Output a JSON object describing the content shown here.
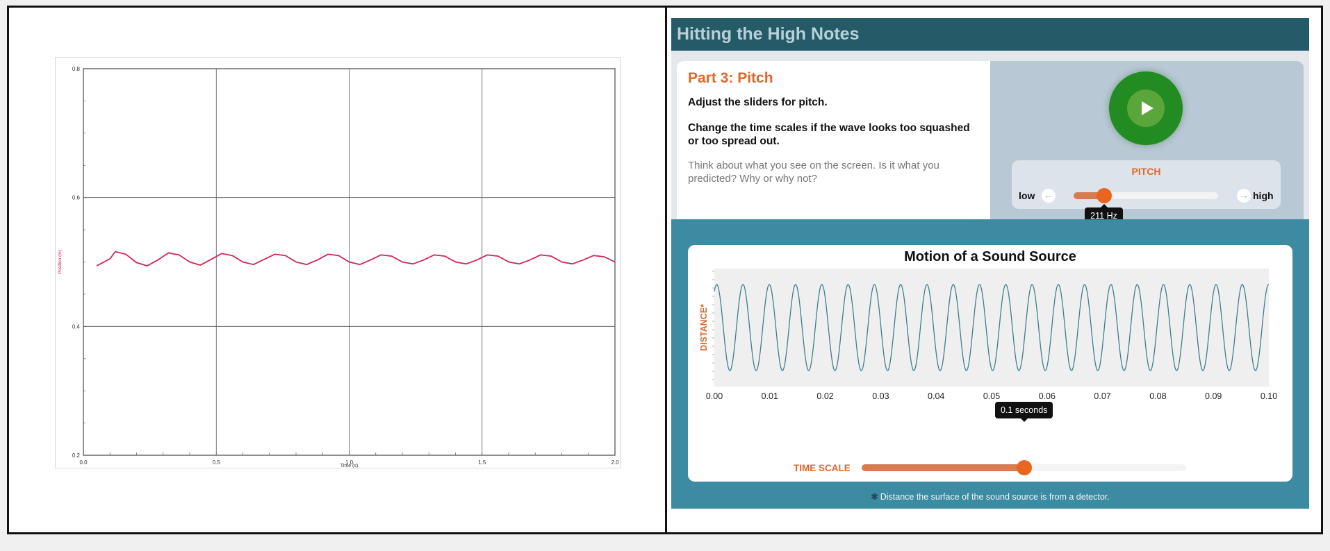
{
  "left_graph": {
    "chart_data": {
      "type": "line",
      "xlabel": "Time (s)",
      "ylabel": "Position (m)",
      "xlim": [
        0,
        2.0
      ],
      "ylim": [
        0.2,
        0.8
      ],
      "x_ticks": [
        "0.0",
        "0.5",
        "1.0",
        "1.5",
        "2.0"
      ],
      "y_ticks": [
        "0.2",
        "0.4",
        "0.6",
        "0.8"
      ],
      "grid": true,
      "line_color": "#d42452",
      "series": [
        {
          "x": [
            0.05,
            0.1,
            0.12,
            0.16,
            0.2,
            0.24,
            0.28,
            0.32,
            0.36,
            0.4,
            0.44,
            0.48,
            0.52,
            0.56,
            0.6,
            0.64,
            0.68,
            0.72,
            0.76,
            0.8,
            0.84,
            0.88,
            0.92,
            0.96,
            1.0,
            1.04,
            1.08,
            1.12,
            1.16,
            1.2,
            1.24,
            1.28,
            1.32,
            1.36,
            1.4,
            1.44,
            1.48,
            1.52,
            1.56,
            1.6,
            1.64,
            1.68,
            1.72,
            1.76,
            1.8,
            1.84,
            1.88,
            1.92,
            1.96,
            2.0
          ],
          "values": [
            0.494,
            0.505,
            0.516,
            0.512,
            0.499,
            0.494,
            0.503,
            0.514,
            0.511,
            0.5,
            0.495,
            0.504,
            0.513,
            0.51,
            0.5,
            0.496,
            0.504,
            0.512,
            0.51,
            0.5,
            0.496,
            0.503,
            0.512,
            0.51,
            0.5,
            0.496,
            0.503,
            0.511,
            0.509,
            0.5,
            0.497,
            0.503,
            0.511,
            0.509,
            0.5,
            0.497,
            0.503,
            0.511,
            0.509,
            0.5,
            0.497,
            0.503,
            0.511,
            0.509,
            0.5,
            0.497,
            0.503,
            0.51,
            0.508,
            0.5
          ]
        }
      ]
    }
  },
  "app": {
    "title": "Hitting the High Notes",
    "part_title": "Part 3: Pitch",
    "instruction1": "Adjust the sliders for pitch.",
    "instruction2": "Change the time scales if the wave looks too squashed or too spread out.",
    "think_text": "Think about what you see on the screen. Is it what you predicted? Why or why not?",
    "play_icon": "play-icon",
    "pitch": {
      "label": "PITCH",
      "low": "low",
      "high": "high",
      "value_hz": 211,
      "tooltip": "211 Hz",
      "fraction": 0.21
    },
    "time_scale": {
      "label": "TIME SCALE",
      "tooltip": "0.1 seconds",
      "fraction": 0.5
    },
    "footnote_star": "✱",
    "footnote": "Distance the surface of the sound source is from a detector.",
    "colors": {
      "header": "#255a69",
      "accent": "#e0662a",
      "play": "#228b22",
      "wave": "#3d7f8f"
    }
  },
  "chart_data": {
    "type": "line",
    "title": "Motion of a Sound Source",
    "ylabel": "DISTANCE*",
    "xlabel": "",
    "xlim": [
      0,
      0.1
    ],
    "x_ticks": [
      "0.00",
      "0.01",
      "0.02",
      "0.03",
      "0.04",
      "0.05",
      "0.06",
      "0.07",
      "0.08",
      "0.09",
      "0.10"
    ],
    "frequency_hz": 211,
    "cycles_shown": 21.1,
    "grid": false
  }
}
